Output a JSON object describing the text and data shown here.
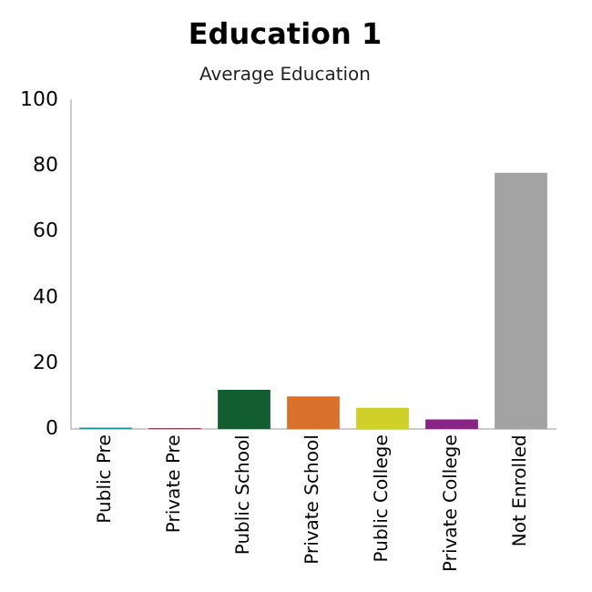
{
  "chart_data": {
    "type": "bar",
    "title": "Education 1",
    "subtitle": "Average Education",
    "categories": [
      "Public Pre",
      "Private Pre",
      "Public School",
      "Private School",
      "Public College",
      "Private College",
      "Not Enrolled"
    ],
    "values": [
      0.5,
      0.3,
      12,
      10,
      6.5,
      3,
      78
    ],
    "colors": [
      "#1f8fa3",
      "#7a1414",
      "#135e30",
      "#d9712a",
      "#cfcf2a",
      "#8a2386",
      "#a3a3a3"
    ],
    "ylim": [
      0,
      100
    ],
    "yticks": [
      0,
      20,
      40,
      60,
      80,
      100
    ],
    "grid": false,
    "legend": false
  }
}
